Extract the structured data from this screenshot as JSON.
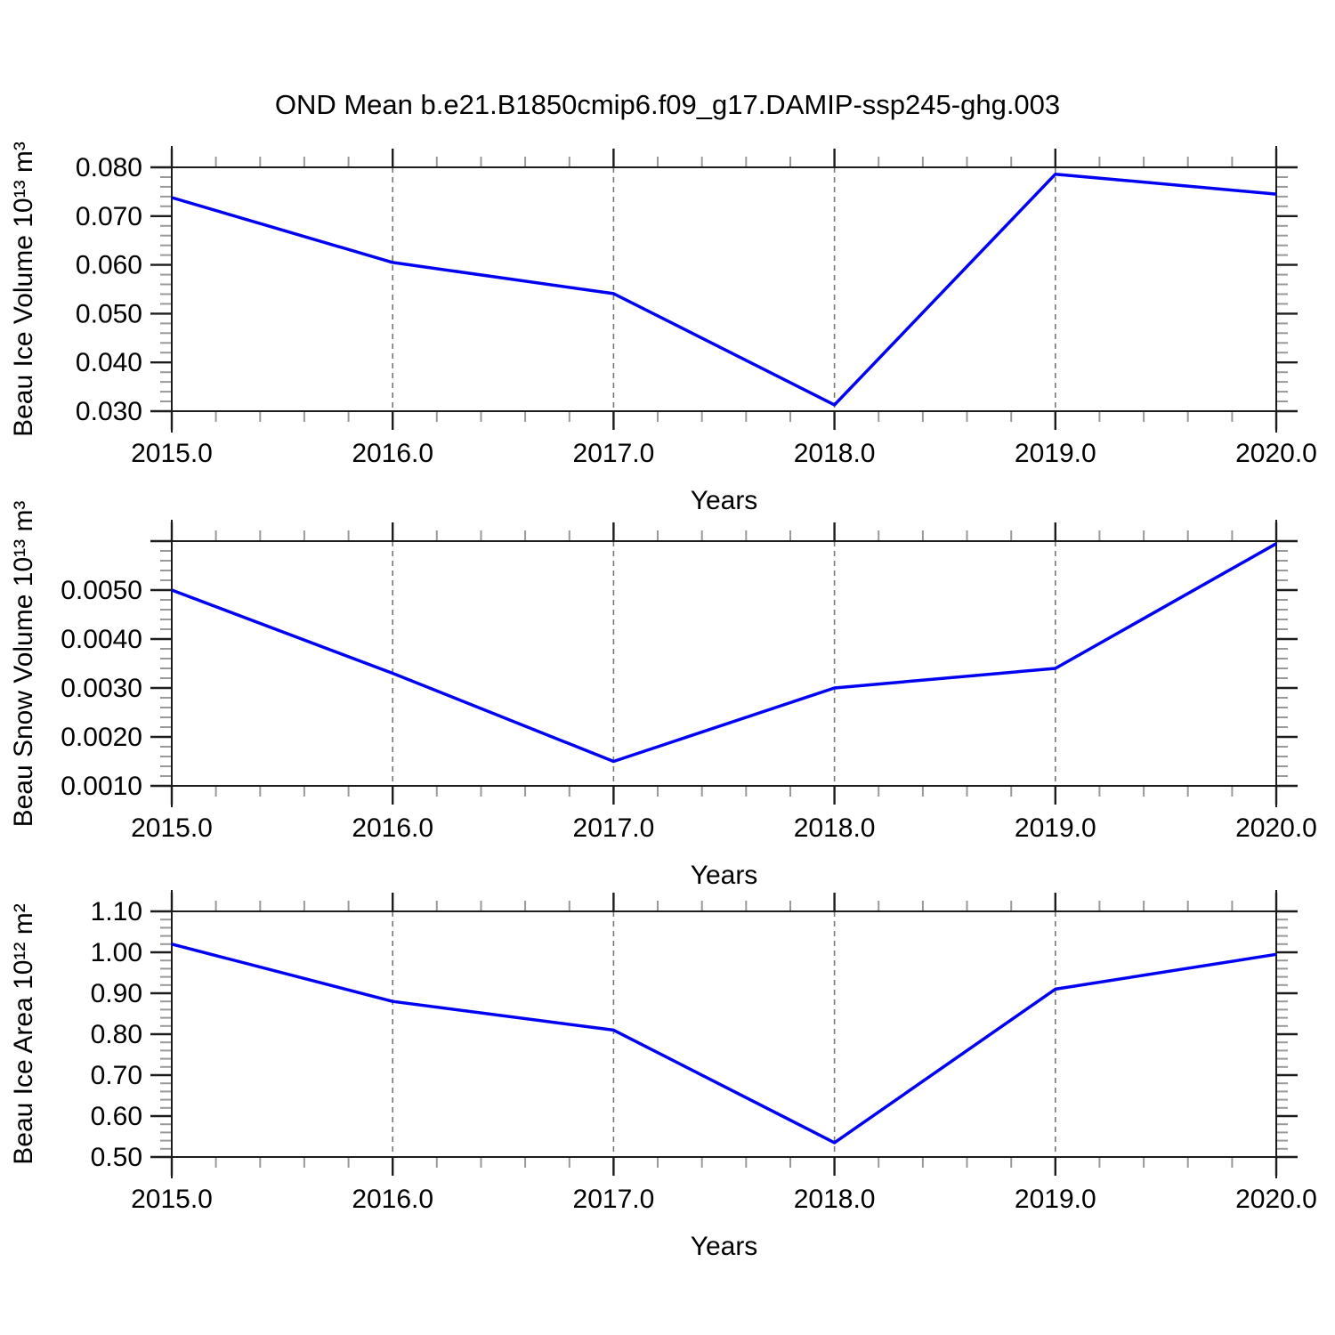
{
  "title": "OND Mean b.e21.B1850cmip6.f09_g17.DAMIP-ssp245-ghg.003",
  "colors": {
    "line": "#0000f2",
    "axis": "#1c1c1c",
    "minor_tick": "#999999",
    "grid": "#777777",
    "text": "#000000",
    "background": "#ffffff"
  },
  "chart_data": [
    {
      "type": "line",
      "ylabel": "Beau Ice Volume 10¹³ m³",
      "xlabel": "Years",
      "x": [
        2015,
        2016,
        2017,
        2018,
        2019,
        2020
      ],
      "values": [
        0.0738,
        0.0605,
        0.0541,
        0.0313,
        0.0786,
        0.0745
      ],
      "xlim": [
        2015,
        2020
      ],
      "xtick_labels": [
        "2015.0",
        "2016.0",
        "2017.0",
        "2018.0",
        "2019.0",
        "2020.0"
      ],
      "x_minor_step": 0.2,
      "ylim": [
        0.03,
        0.08
      ],
      "yticks": [
        0.03,
        0.04,
        0.05,
        0.06,
        0.07,
        0.08
      ],
      "ytick_labels": [
        "0.030",
        "0.040",
        "0.050",
        "0.060",
        "0.070",
        "0.080"
      ],
      "y_minor_step": 0.002,
      "grid_x": [
        2016,
        2017,
        2018,
        2019
      ],
      "grid_style": "dashed",
      "legend": "none"
    },
    {
      "type": "line",
      "ylabel": "Beau Snow Volume 10¹³ m³",
      "xlabel": "Years",
      "x": [
        2015,
        2016,
        2017,
        2018,
        2019,
        2020
      ],
      "values": [
        0.005,
        0.0033,
        0.0015,
        0.003,
        0.0034,
        0.00595
      ],
      "xlim": [
        2015,
        2020
      ],
      "xtick_labels": [
        "2015.0",
        "2016.0",
        "2017.0",
        "2018.0",
        "2019.0",
        "2020.0"
      ],
      "x_minor_step": 0.2,
      "ylim": [
        0.001,
        0.006
      ],
      "yticks": [
        0.001,
        0.002,
        0.003,
        0.004,
        0.005,
        0.006
      ],
      "ytick_labels": [
        "0.0010",
        "0.0020",
        "0.0030",
        "0.0040",
        "0.0050",
        ""
      ],
      "y_minor_step": 0.0002,
      "grid_x": [
        2016,
        2017,
        2018,
        2019
      ],
      "grid_style": "dashed",
      "legend": "none"
    },
    {
      "type": "line",
      "ylabel": "Beau Ice Area 10¹² m²",
      "xlabel": "Years",
      "x": [
        2015,
        2016,
        2017,
        2018,
        2019,
        2020
      ],
      "values": [
        1.02,
        0.88,
        0.81,
        0.535,
        0.91,
        0.995
      ],
      "xlim": [
        2015,
        2020
      ],
      "xtick_labels": [
        "2015.0",
        "2016.0",
        "2017.0",
        "2018.0",
        "2019.0",
        "2020.0"
      ],
      "x_minor_step": 0.2,
      "ylim": [
        0.5,
        1.1
      ],
      "yticks": [
        0.5,
        0.6,
        0.7,
        0.8,
        0.9,
        1.0,
        1.1
      ],
      "ytick_labels": [
        "0.50",
        "0.60",
        "0.70",
        "0.80",
        "0.90",
        "1.00",
        "1.10"
      ],
      "y_minor_step": 0.02,
      "grid_x": [
        2016,
        2017,
        2018,
        2019
      ],
      "grid_style": "dashed",
      "legend": "none"
    }
  ]
}
